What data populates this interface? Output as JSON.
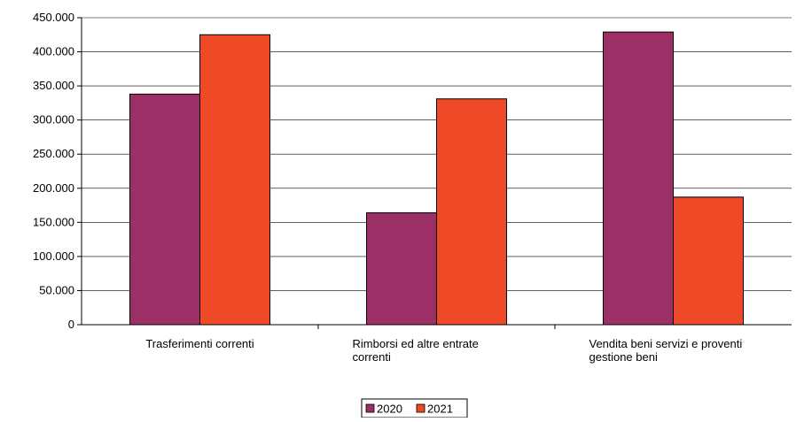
{
  "chart_data": {
    "type": "bar",
    "categories": [
      [
        "Trasferimenti correnti"
      ],
      [
        "Rimborsi ed altre entrate",
        "correnti"
      ],
      [
        "Vendita beni servizi e proventi",
        "gestione beni"
      ]
    ],
    "series": [
      {
        "name": "2020",
        "color": "#9b2f66",
        "values": [
          338000,
          164000,
          429000
        ]
      },
      {
        "name": "2021",
        "color": "#ee4a27",
        "values": [
          425000,
          331000,
          187000
        ]
      }
    ],
    "ylim": [
      0,
      450000
    ],
    "yticks": [
      0,
      50000,
      100000,
      150000,
      200000,
      250000,
      300000,
      350000,
      400000,
      450000
    ],
    "ytick_labels": [
      "0",
      "50.000",
      "100.000",
      "150.000",
      "200.000",
      "250.000",
      "300.000",
      "350.000",
      "400.000",
      "450.000"
    ],
    "grid": true,
    "legend_position": "bottom"
  }
}
